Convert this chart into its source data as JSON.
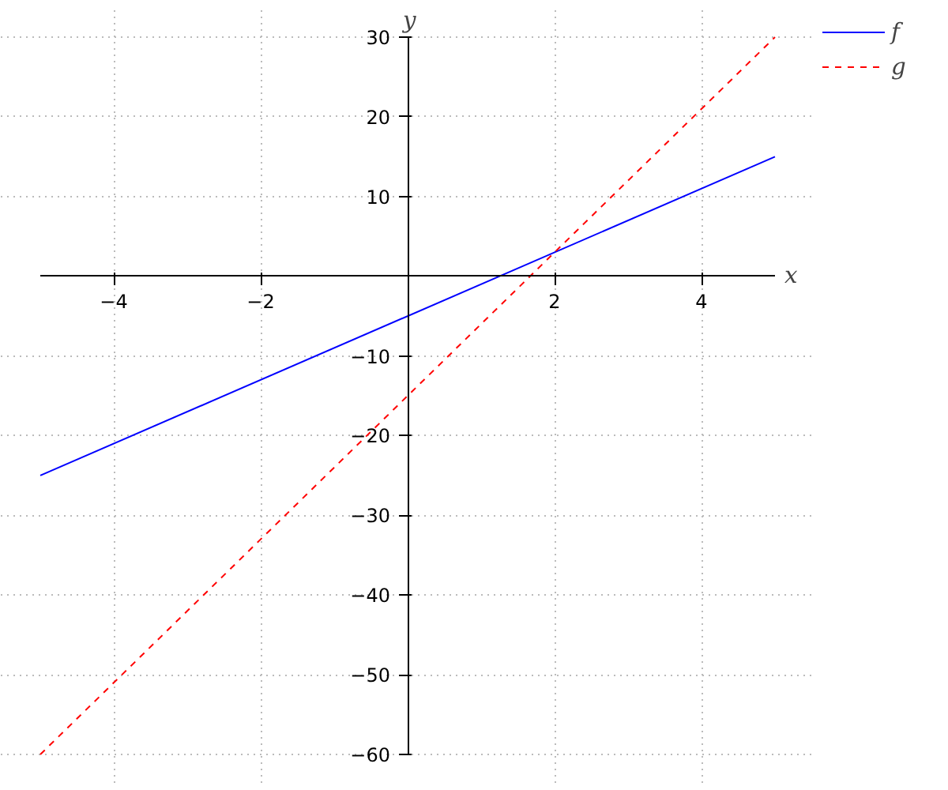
{
  "chart_data": {
    "type": "line",
    "xlabel": "x",
    "ylabel": "y",
    "x": [
      -5,
      5
    ],
    "series": [
      {
        "name": "f",
        "color": "#0000ff",
        "values": [
          -25,
          15
        ],
        "line_style": "solid"
      },
      {
        "name": "g",
        "color": "#ff0000",
        "values": [
          -60,
          30
        ],
        "line_style": "dashed"
      }
    ],
    "xlim": [
      -5,
      5
    ],
    "ylim": [
      -60,
      30
    ],
    "xticks": [
      -4,
      -2,
      2,
      4
    ],
    "yticks": [
      -60,
      -50,
      -40,
      -30,
      -20,
      -10,
      10,
      20,
      30
    ],
    "grid": true,
    "legend": "top right",
    "marker": "none"
  }
}
